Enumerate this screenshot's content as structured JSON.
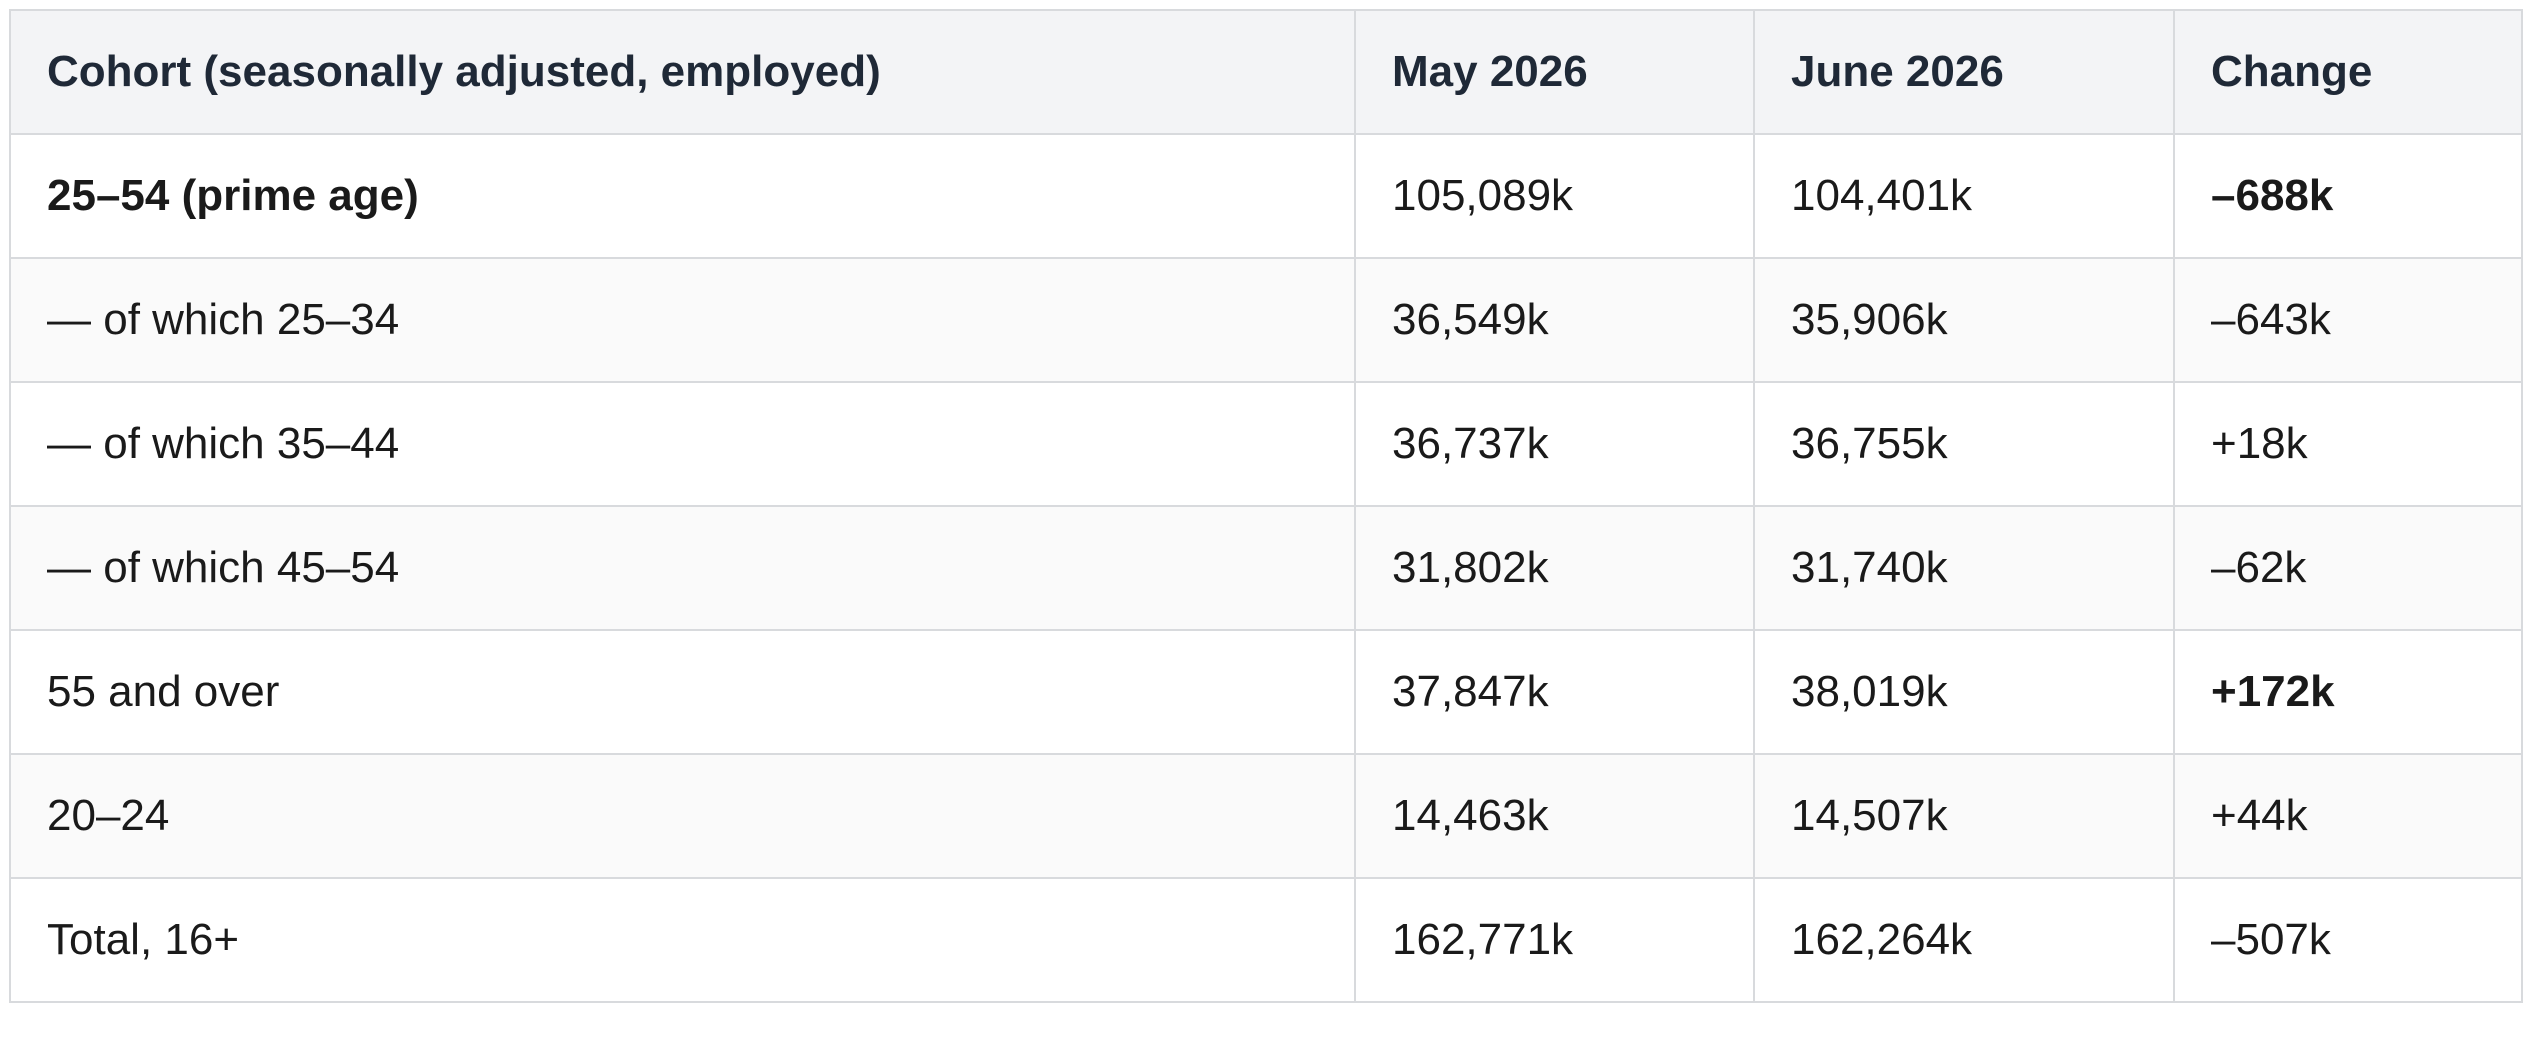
{
  "table": {
    "headers": [
      "Cohort (seasonally adjusted, employed)",
      "May 2026",
      "June 2026",
      "Change"
    ],
    "rows": [
      {
        "cohort": "25–54 (prime age)",
        "may": "105,089k",
        "june": "104,401k",
        "change": "–688k"
      },
      {
        "cohort": "— of which 25–34",
        "may": "36,549k",
        "june": "35,906k",
        "change": "–643k"
      },
      {
        "cohort": "— of which 35–44",
        "may": "36,737k",
        "june": "36,755k",
        "change": "+18k"
      },
      {
        "cohort": "— of which 45–54",
        "may": "31,802k",
        "june": "31,740k",
        "change": "–62k"
      },
      {
        "cohort": "55 and over",
        "may": "37,847k",
        "june": "38,019k",
        "change": "+172k"
      },
      {
        "cohort": "20–24",
        "may": "14,463k",
        "june": "14,507k",
        "change": "+44k"
      },
      {
        "cohort": "Total, 16+",
        "may": "162,771k",
        "june": "162,264k",
        "change": "–507k"
      }
    ]
  }
}
